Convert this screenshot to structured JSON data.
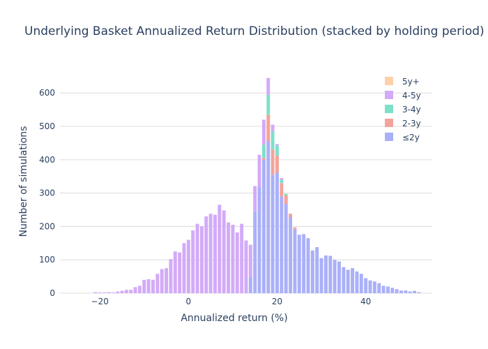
{
  "chart_data": {
    "type": "bar",
    "stacked": true,
    "title": "Underlying Basket Annualized Return Distribution (stacked by holding period)",
    "xlabel": "Annualized return (%)",
    "ylabel": "Number of simulations",
    "xlim": [
      -29,
      55
    ],
    "ylim": [
      0,
      680
    ],
    "x_ticks": [
      -20,
      0,
      20,
      40
    ],
    "y_ticks": [
      0,
      100,
      200,
      300,
      400,
      500,
      600
    ],
    "grid": true,
    "legend_position": "top-right",
    "x": [
      -21,
      -20,
      -19,
      -18,
      -17,
      -16,
      -15,
      -14,
      -13,
      -12,
      -11,
      -10,
      -9,
      -8,
      -7,
      -6,
      -5,
      -4,
      -3,
      -2,
      -1,
      0,
      1,
      2,
      3,
      4,
      5,
      6,
      7,
      8,
      9,
      10,
      11,
      12,
      13,
      14,
      15,
      16,
      17,
      18,
      19,
      20,
      21,
      22,
      23,
      24,
      25,
      26,
      27,
      28,
      29,
      30,
      31,
      32,
      33,
      34,
      35,
      36,
      37,
      38,
      39,
      40,
      41,
      42,
      43,
      44,
      45,
      46,
      47,
      48,
      49,
      50,
      51,
      52
    ],
    "series": [
      {
        "name": "≤2y",
        "color": "#aab0f8",
        "values": [
          0,
          0,
          0,
          0,
          0,
          0,
          0,
          0,
          0,
          0,
          0,
          0,
          0,
          0,
          0,
          0,
          0,
          0,
          0,
          0,
          0,
          0,
          0,
          0,
          0,
          0,
          0,
          0,
          0,
          0,
          0,
          0,
          0,
          0,
          0,
          48,
          243,
          318,
          400,
          455,
          355,
          362,
          290,
          268,
          228,
          192,
          175,
          177,
          165,
          128,
          138,
          105,
          113,
          112,
          100,
          95,
          78,
          70,
          75,
          65,
          58,
          45,
          38,
          35,
          30,
          22,
          20,
          16,
          12,
          8,
          8,
          5,
          7,
          3
        ]
      },
      {
        "name": "2-3y",
        "color": "#f4a39a",
        "values": [
          0,
          0,
          0,
          0,
          0,
          0,
          0,
          0,
          0,
          0,
          0,
          0,
          0,
          0,
          0,
          0,
          0,
          0,
          0,
          0,
          0,
          0,
          0,
          0,
          0,
          0,
          0,
          0,
          0,
          0,
          0,
          0,
          0,
          0,
          0,
          0,
          0,
          0,
          5,
          80,
          75,
          50,
          40,
          25,
          10,
          5,
          0,
          0,
          0,
          0,
          0,
          0,
          0,
          0,
          0,
          0,
          0,
          0,
          0,
          0,
          0,
          0,
          0,
          0,
          0,
          0,
          0,
          0,
          0,
          0,
          0,
          0,
          0,
          0
        ]
      },
      {
        "name": "3-4y",
        "color": "#7fe0c8",
        "values": [
          0,
          0,
          0,
          0,
          0,
          0,
          0,
          0,
          0,
          0,
          0,
          0,
          0,
          0,
          0,
          0,
          0,
          0,
          0,
          0,
          0,
          0,
          0,
          0,
          0,
          0,
          0,
          0,
          0,
          0,
          0,
          0,
          0,
          0,
          0,
          0,
          0,
          0,
          40,
          60,
          55,
          30,
          10,
          5,
          0,
          0,
          0,
          0,
          0,
          0,
          0,
          0,
          0,
          0,
          0,
          0,
          0,
          0,
          0,
          0,
          0,
          0,
          0,
          0,
          0,
          0,
          0,
          0,
          0,
          0,
          0,
          0,
          0,
          0
        ]
      },
      {
        "name": "4-5y",
        "color": "#d3aaf8",
        "values": [
          3,
          2,
          2,
          3,
          2,
          5,
          7,
          10,
          10,
          18,
          22,
          40,
          42,
          40,
          58,
          72,
          75,
          102,
          125,
          122,
          150,
          160,
          188,
          208,
          200,
          230,
          238,
          235,
          265,
          248,
          212,
          205,
          182,
          208,
          158,
          97,
          78,
          97,
          75,
          50,
          20,
          5,
          5,
          0,
          0,
          0,
          0,
          0,
          0,
          0,
          0,
          0,
          0,
          0,
          0,
          0,
          0,
          0,
          0,
          0,
          0,
          0,
          0,
          0,
          0,
          0,
          0,
          0,
          0,
          0,
          0,
          0,
          0,
          0
        ]
      },
      {
        "name": "5y+",
        "color": "#fdd0a8",
        "values": [
          0,
          0,
          0,
          0,
          0,
          0,
          0,
          0,
          0,
          0,
          0,
          0,
          0,
          0,
          0,
          0,
          0,
          0,
          0,
          0,
          0,
          0,
          0,
          0,
          0,
          0,
          0,
          0,
          0,
          0,
          0,
          0,
          0,
          0,
          0,
          0,
          0,
          0,
          0,
          0,
          0,
          0,
          0,
          0,
          0,
          0,
          0,
          0,
          0,
          0,
          0,
          0,
          0,
          0,
          0,
          0,
          0,
          0,
          0,
          0,
          0,
          0,
          0,
          0,
          0,
          0,
          0,
          0,
          0,
          0,
          0,
          0,
          0,
          0
        ]
      }
    ],
    "legend_order": [
      "5y+",
      "4-5y",
      "3-4y",
      "2-3y",
      "≤2y"
    ]
  },
  "colors": {
    "grid": "#dcdcdc",
    "text": "#2a3f5f",
    "background": "#ffffff"
  }
}
